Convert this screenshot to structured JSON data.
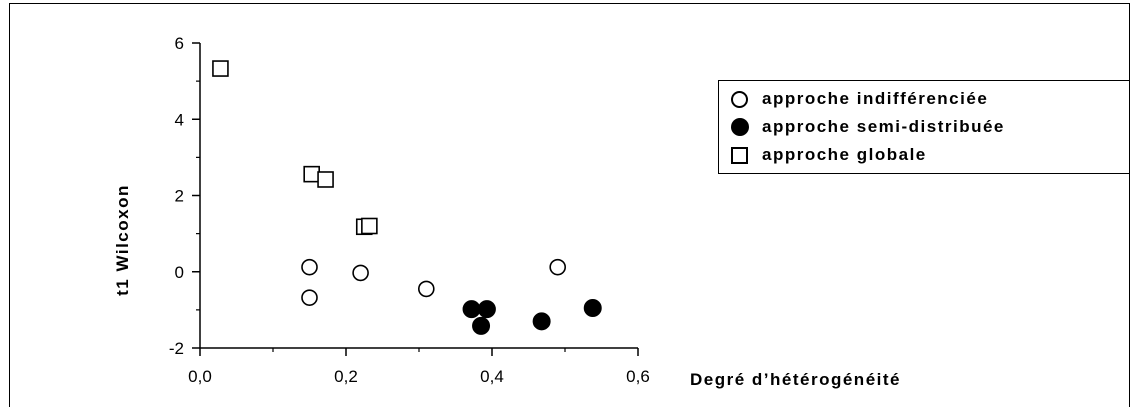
{
  "chart_data": {
    "type": "scatter",
    "title": "",
    "xlabel": "Degré d’hétérogénéité",
    "ylabel": "t1 Wilcoxon",
    "xlim": [
      0.0,
      0.6
    ],
    "ylim": [
      -2,
      6
    ],
    "x_ticks": [
      "0,0",
      "0,2",
      "0,4",
      "0,6"
    ],
    "x_tick_values": [
      0.0,
      0.2,
      0.4,
      0.6
    ],
    "y_ticks": [
      "-2",
      "0",
      "2",
      "4",
      "6"
    ],
    "y_tick_values": [
      -2,
      0,
      2,
      4,
      6
    ],
    "grid": false,
    "legend_position": "right",
    "series": [
      {
        "name": "approche indifférenciée",
        "marker": "open-circle",
        "points": [
          [
            0.15,
            0.12
          ],
          [
            0.15,
            -0.68
          ],
          [
            0.22,
            -0.03
          ],
          [
            0.31,
            -0.45
          ],
          [
            0.49,
            0.12
          ]
        ]
      },
      {
        "name": "approche semi-distribuée",
        "marker": "filled-circle",
        "points": [
          [
            0.372,
            -0.98
          ],
          [
            0.385,
            -1.42
          ],
          [
            0.393,
            -0.98
          ],
          [
            0.468,
            -1.3
          ],
          [
            0.538,
            -0.95
          ]
        ]
      },
      {
        "name": "approche globale",
        "marker": "open-square",
        "points": [
          [
            0.028,
            5.33
          ],
          [
            0.153,
            2.56
          ],
          [
            0.172,
            2.42
          ],
          [
            0.225,
            1.18
          ],
          [
            0.232,
            1.2
          ]
        ]
      }
    ]
  }
}
